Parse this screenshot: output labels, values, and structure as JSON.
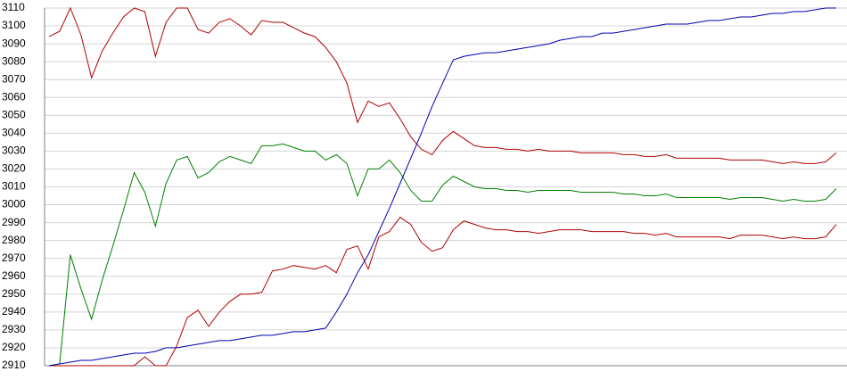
{
  "chart_data": {
    "type": "line",
    "ylim": [
      2910,
      3110
    ],
    "yticks": [
      2910,
      2920,
      2930,
      2940,
      2950,
      2960,
      2970,
      2980,
      2990,
      3000,
      3010,
      3020,
      3030,
      3040,
      3050,
      3060,
      3070,
      3080,
      3090,
      3100,
      3110
    ],
    "grid": true,
    "series": [
      {
        "color": "#b00000",
        "values": [
          3094,
          3097,
          3110,
          3095,
          3071,
          3086,
          3096,
          3105,
          3110,
          3108,
          3083,
          3102,
          3110,
          3110,
          3098,
          3096,
          3102,
          3104,
          3100,
          3095,
          3103,
          3102,
          3102,
          3099,
          3096,
          3094,
          3088,
          3080,
          3068,
          3046,
          3058,
          3055,
          3057,
          3048,
          3038,
          3031,
          3028,
          3036,
          3041,
          3037,
          3033,
          3032,
          3032,
          3031,
          3031,
          3030,
          3031,
          3030,
          3030,
          3030,
          3029,
          3029,
          3029,
          3029,
          3028,
          3028,
          3027,
          3027,
          3028,
          3026,
          3026,
          3026,
          3026,
          3026,
          3025,
          3025,
          3025,
          3025,
          3024,
          3023,
          3024,
          3023,
          3023,
          3024,
          3029
        ]
      },
      {
        "color": "#008000",
        "values": [
          2910,
          2911,
          2972,
          2953,
          2936,
          2958,
          2977,
          2997,
          3018,
          3007,
          2988,
          3012,
          3025,
          3027,
          3015,
          3018,
          3024,
          3027,
          3025,
          3023,
          3033,
          3033,
          3034,
          3032,
          3030,
          3030,
          3025,
          3028,
          3023,
          3005,
          3020,
          3020,
          3025,
          3018,
          3008,
          3002,
          3002,
          3011,
          3016,
          3013,
          3010,
          3009,
          3009,
          3008,
          3008,
          3007,
          3008,
          3008,
          3008,
          3008,
          3007,
          3007,
          3007,
          3007,
          3006,
          3006,
          3005,
          3005,
          3006,
          3004,
          3004,
          3004,
          3004,
          3004,
          3003,
          3004,
          3004,
          3004,
          3003,
          3002,
          3003,
          3002,
          3002,
          3003,
          3009
        ]
      },
      {
        "color": "#b00000",
        "values": [
          2910,
          2910,
          2910,
          2910,
          2910,
          2910,
          2910,
          2910,
          2910,
          2915,
          2910,
          2910,
          2921,
          2937,
          2941,
          2932,
          2940,
          2946,
          2950,
          2950,
          2951,
          2963,
          2964,
          2966,
          2965,
          2964,
          2966,
          2962,
          2975,
          2977,
          2964,
          2982,
          2985,
          2993,
          2989,
          2979,
          2974,
          2976,
          2986,
          2991,
          2989,
          2987,
          2986,
          2986,
          2985,
          2985,
          2984,
          2985,
          2986,
          2986,
          2986,
          2985,
          2985,
          2985,
          2985,
          2984,
          2984,
          2983,
          2984,
          2982,
          2982,
          2982,
          2982,
          2982,
          2981,
          2983,
          2983,
          2983,
          2982,
          2981,
          2982,
          2981,
          2981,
          2982,
          2989
        ]
      },
      {
        "color": "#0000b0",
        "values": [
          2910,
          2911,
          2912,
          2913,
          2913,
          2914,
          2915,
          2916,
          2917,
          2917,
          2918,
          2920,
          2920,
          2921,
          2922,
          2923,
          2924,
          2924,
          2925,
          2926,
          2927,
          2927,
          2928,
          2929,
          2929,
          2930,
          2931,
          2940,
          2950,
          2962,
          2972,
          2985,
          2998,
          3012,
          3026,
          3040,
          3055,
          3068,
          3081,
          3083,
          3084,
          3085,
          3085,
          3086,
          3087,
          3088,
          3089,
          3090,
          3092,
          3093,
          3094,
          3094,
          3096,
          3096,
          3097,
          3098,
          3099,
          3100,
          3101,
          3101,
          3101,
          3102,
          3103,
          3103,
          3104,
          3105,
          3105,
          3106,
          3107,
          3107,
          3108,
          3108,
          3109,
          3110,
          3110
        ]
      }
    ]
  }
}
